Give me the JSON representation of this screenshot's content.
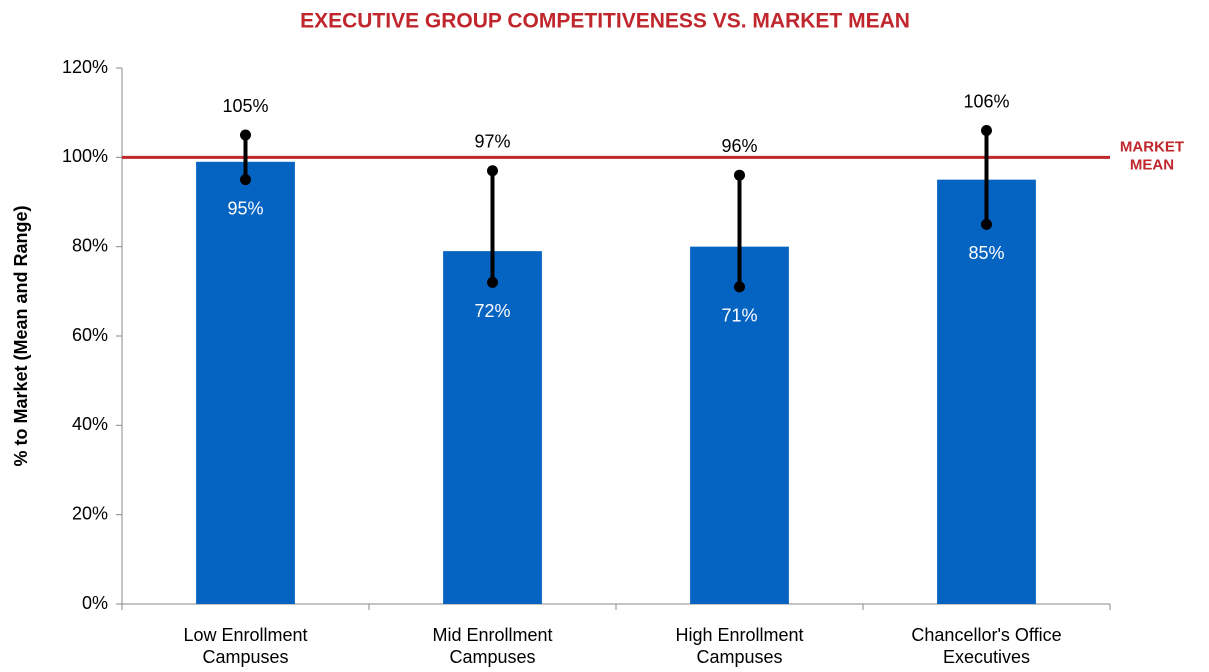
{
  "chart_data": {
    "type": "bar",
    "title": "EXECUTIVE GROUP COMPETITIVENESS VS. MARKET MEAN",
    "y_label": "% to Market (Mean and Range)",
    "categories": [
      "Low Enrollment Campuses",
      "Mid Enrollment Campuses",
      "High Enrollment Campuses",
      "Chancellor's Office Executives"
    ],
    "values": [
      99,
      79,
      80,
      95
    ],
    "color": "#0563c1",
    "range_min": [
      95,
      72,
      71,
      85
    ],
    "range_min_labels": [
      "95%",
      "72%",
      "71%",
      "85%"
    ],
    "range_max": [
      105,
      97,
      96,
      106
    ],
    "range_max_labels": [
      "105%",
      "97%",
      "96%",
      "106%"
    ],
    "range_color": "#000000",
    "ylim": [
      0,
      120
    ],
    "yticks": [
      {
        "value": 0,
        "label": "0%"
      },
      {
        "value": 20,
        "label": "20%"
      },
      {
        "value": 40,
        "label": "40%"
      },
      {
        "value": 60,
        "label": "60%"
      },
      {
        "value": 80,
        "label": "80%"
      },
      {
        "value": 100,
        "label": "100%"
      },
      {
        "value": 120,
        "label": "120%"
      }
    ],
    "reference_line": {
      "value": 100,
      "label_lines": [
        "MARKET",
        "MEAN"
      ],
      "color": "#c0272d"
    },
    "grid": false
  }
}
